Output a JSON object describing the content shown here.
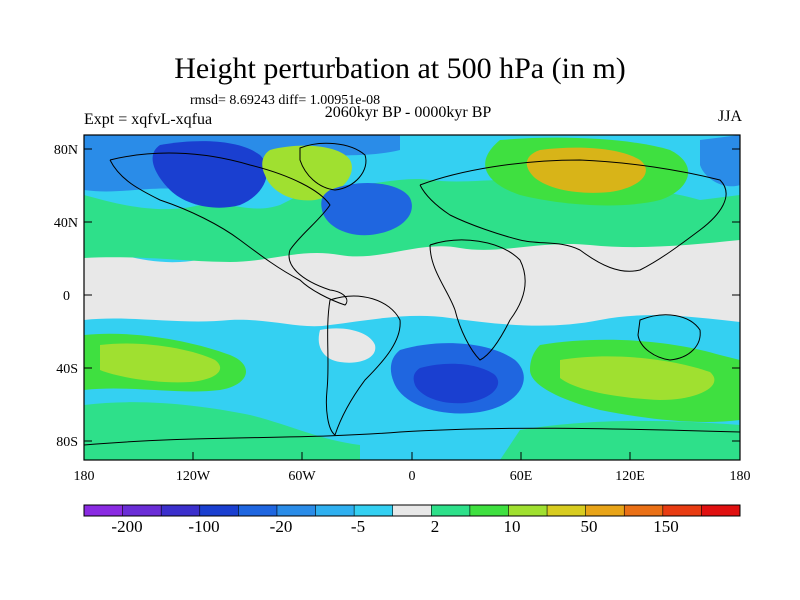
{
  "title": "Height perturbation at 500 hPa (in m)",
  "stats_line": "rmsd= 8.69243 diff= 1.00951e-08",
  "left_label": "Expt = xqfvL-xqfua",
  "center_label": "2060kyr BP - 0000kyr BP",
  "right_label": "JJA",
  "y_ticks": [
    "80N",
    "40N",
    "0",
    "40S",
    "80S"
  ],
  "x_ticks": [
    "180",
    "120W",
    "60W",
    "0",
    "60E",
    "120E",
    "180"
  ],
  "colorbar": {
    "colors": [
      "#8a2be2",
      "#6a2dd6",
      "#3b2fcc",
      "#1a3fd0",
      "#1f66e0",
      "#2a8ce8",
      "#2fb0f0",
      "#34d0f2",
      "#e8e8e8",
      "#2ee08a",
      "#3fe040",
      "#a0e030",
      "#d8cc20",
      "#e8a418",
      "#ea7016",
      "#e83c12",
      "#e01010"
    ],
    "labels": [
      "-200",
      "-100",
      "-20",
      "-5",
      "2",
      "10",
      "50",
      "150"
    ]
  },
  "palette": {
    "background": "#e8e8e8",
    "blue_dark": "#1a3fd0",
    "blue": "#1f66e0",
    "blue_mid": "#2a8ce8",
    "blue_light": "#34d0f2",
    "green": "#2ee08a",
    "yellow_green": "#a0e030",
    "gold": "#d8b418",
    "coast": "#000000"
  }
}
